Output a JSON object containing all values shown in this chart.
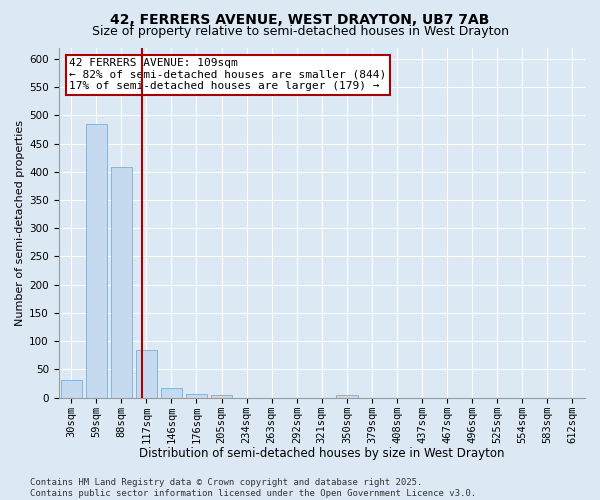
{
  "title1": "42, FERRERS AVENUE, WEST DRAYTON, UB7 7AB",
  "title2": "Size of property relative to semi-detached houses in West Drayton",
  "xlabel": "Distribution of semi-detached houses by size in West Drayton",
  "ylabel": "Number of semi-detached properties",
  "categories": [
    "30sqm",
    "59sqm",
    "88sqm",
    "117sqm",
    "146sqm",
    "176sqm",
    "205sqm",
    "234sqm",
    "263sqm",
    "292sqm",
    "321sqm",
    "350sqm",
    "379sqm",
    "408sqm",
    "437sqm",
    "467sqm",
    "496sqm",
    "525sqm",
    "554sqm",
    "583sqm",
    "612sqm"
  ],
  "values": [
    32,
    485,
    408,
    85,
    18,
    6,
    5,
    0,
    0,
    0,
    0,
    5,
    0,
    0,
    0,
    0,
    0,
    0,
    0,
    0,
    0
  ],
  "bar_color": "#c5d9ef",
  "bar_edge_color": "#7aadd4",
  "red_line_x": 2.82,
  "annotation_line1": "42 FERRERS AVENUE: 109sqm",
  "annotation_line2": "← 82% of semi-detached houses are smaller (844)",
  "annotation_line3": "17% of semi-detached houses are larger (179) →",
  "annotation_box_color": "#aa0000",
  "ylim": [
    0,
    620
  ],
  "yticks": [
    0,
    50,
    100,
    150,
    200,
    250,
    300,
    350,
    400,
    450,
    500,
    550,
    600
  ],
  "background_color": "#dce9f5",
  "plot_bg_color": "#dce9f5",
  "footer": "Contains HM Land Registry data © Crown copyright and database right 2025.\nContains public sector information licensed under the Open Government Licence v3.0.",
  "title1_fontsize": 10,
  "title2_fontsize": 9,
  "xlabel_fontsize": 8.5,
  "ylabel_fontsize": 8,
  "tick_fontsize": 7.5,
  "annotation_fontsize": 8,
  "footer_fontsize": 6.5
}
